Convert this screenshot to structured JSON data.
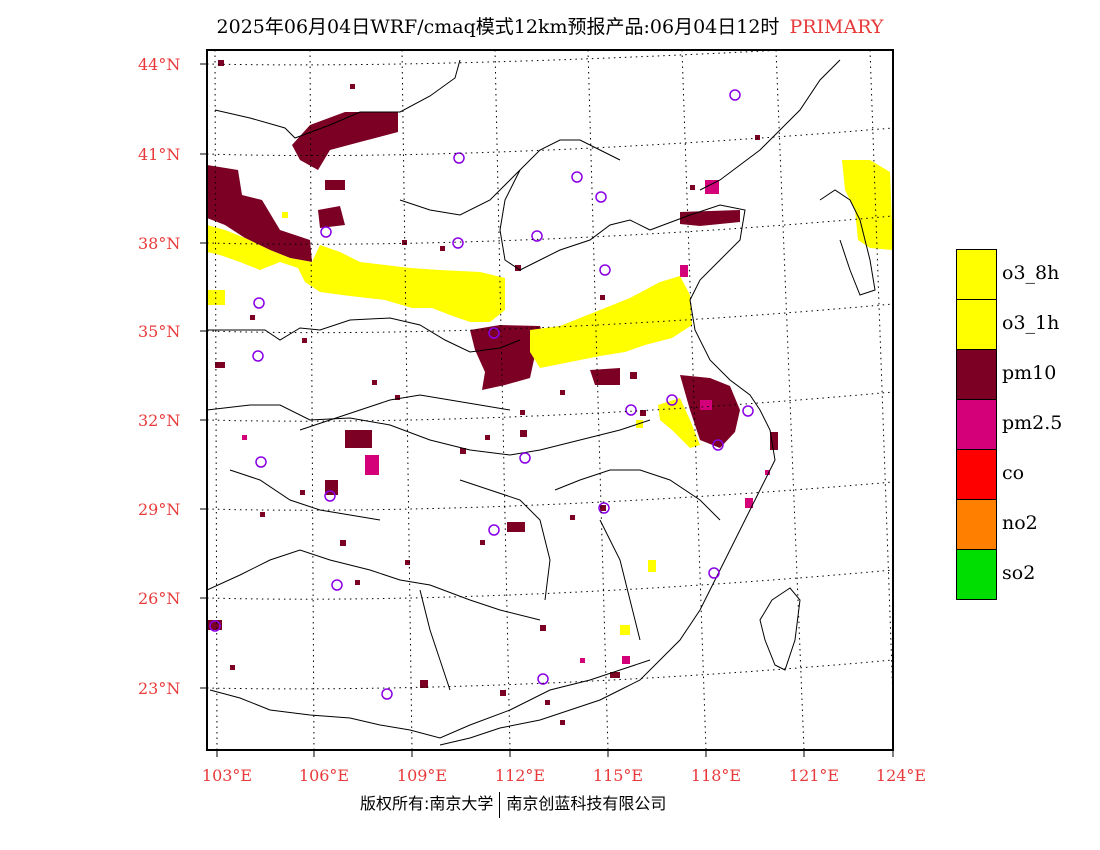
{
  "title": {
    "main": "2025年06月04日WRF/cmaq模式12km预报产品:06月04日12时",
    "tag": "PRIMARY"
  },
  "map": {
    "lat_labels": [
      "44°N",
      "41°N",
      "38°N",
      "35°N",
      "32°N",
      "29°N",
      "26°N",
      "23°N"
    ],
    "lon_labels": [
      "103°E",
      "106°E",
      "109°E",
      "112°E",
      "115°E",
      "118°E",
      "121°E",
      "124°E"
    ]
  },
  "legend": [
    {
      "label": "o3_8h",
      "color": "#ffff00"
    },
    {
      "label": "o3_1h",
      "color": "#ffff00"
    },
    {
      "label": "pm10",
      "color": "#7b0024"
    },
    {
      "label": "pm2.5",
      "color": "#d4007a"
    },
    {
      "label": "co",
      "color": "#ff0000"
    },
    {
      "label": "no2",
      "color": "#ff7f00"
    },
    {
      "label": "so2",
      "color": "#00dd00"
    }
  ],
  "footer": {
    "left": "版权所有:南京大学",
    "right": "南京创蓝科技有限公司"
  }
}
